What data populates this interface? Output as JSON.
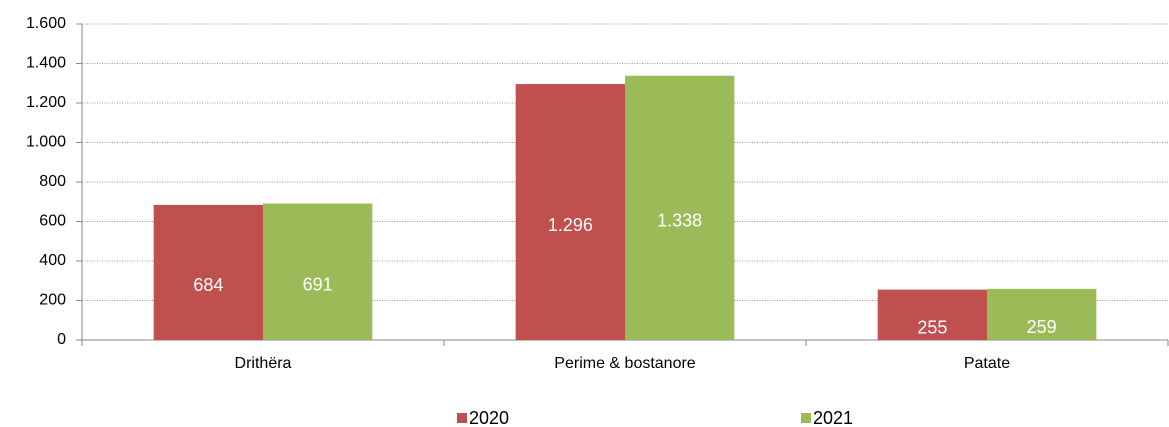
{
  "chart_data": {
    "type": "bar",
    "categories": [
      "Drithëra",
      "Perime & bostanore",
      "Patate"
    ],
    "series": [
      {
        "name": "2020",
        "color": "#c0504d",
        "values": [
          684,
          1296,
          255
        ],
        "value_labels": [
          "684",
          "1.296",
          "255"
        ]
      },
      {
        "name": "2021",
        "color": "#9bbb59",
        "values": [
          691,
          1338,
          259
        ],
        "value_labels": [
          "691",
          "1.338",
          "259"
        ]
      }
    ],
    "ylim": [
      0,
      1600
    ],
    "yticks": [
      0,
      200,
      400,
      600,
      800,
      {
        "value": 1000,
        "label": "1.000"
      },
      {
        "value": 1200,
        "label": "1.200"
      },
      {
        "value": 1400,
        "label": "1.400"
      },
      {
        "value": 1600,
        "label": "1.600"
      }
    ],
    "grid": true,
    "legend": "bottom"
  }
}
